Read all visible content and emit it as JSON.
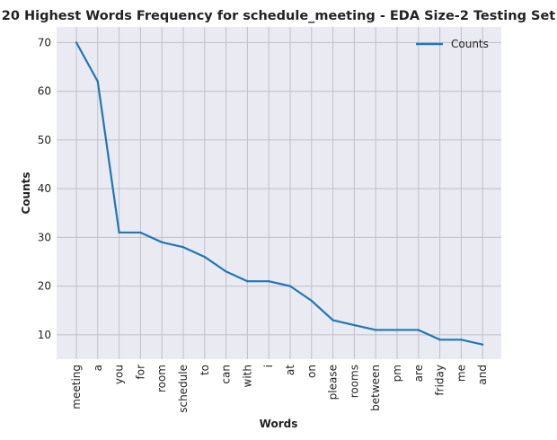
{
  "chart_data": {
    "type": "line",
    "title": "20 Highest Words Frequency for schedule_meeting - EDA Size-2 Testing Set",
    "xlabel": "Words",
    "ylabel": "Counts",
    "categories": [
      "meeting",
      "a",
      "you",
      "for",
      "room",
      "schedule",
      "to",
      "can",
      "with",
      "i",
      "at",
      "on",
      "please",
      "rooms",
      "between",
      "pm",
      "are",
      "friday",
      "me",
      "and"
    ],
    "series": [
      {
        "name": "Counts",
        "values": [
          70,
          62,
          31,
          31,
          29,
          28,
          26,
          23,
          21,
          21,
          20,
          17,
          13,
          12,
          11,
          11,
          11,
          9,
          9,
          8
        ]
      }
    ],
    "yticks": [
      10,
      20,
      30,
      40,
      50,
      60,
      70
    ],
    "ylim": [
      5,
      73.2
    ],
    "grid": true,
    "legend_position": "top-right",
    "colors": {
      "line": "#1f77b4",
      "plot_bg": "#eaeaf2",
      "grid": "#c0c0c8"
    }
  }
}
